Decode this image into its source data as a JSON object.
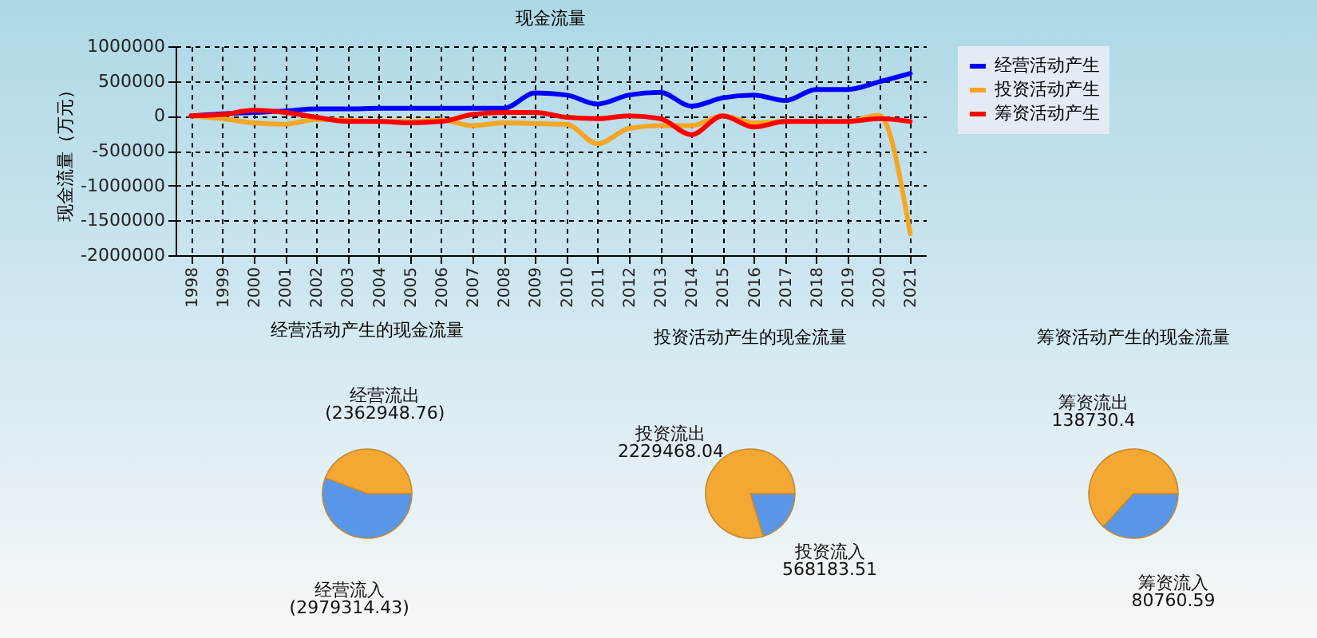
{
  "chart_data": [
    {
      "type": "line",
      "title": "现金流量",
      "ylabel": "现金流量（万元）",
      "categories": [
        "1998",
        "1999",
        "2000",
        "2001",
        "2002",
        "2003",
        "2004",
        "2005",
        "2006",
        "2007",
        "2008",
        "2009",
        "2010",
        "2011",
        "2012",
        "2013",
        "2014",
        "2015",
        "2016",
        "2017",
        "2018",
        "2019",
        "2020",
        "2021"
      ],
      "series": [
        {
          "name": "经营活动产生",
          "color": "#0000ff",
          "values": [
            0,
            30000,
            50000,
            70000,
            100000,
            100000,
            110000,
            110000,
            110000,
            110000,
            110000,
            330000,
            300000,
            170000,
            300000,
            340000,
            140000,
            260000,
            300000,
            220000,
            380000,
            380000,
            490000,
            610000
          ]
        },
        {
          "name": "投资活动产生",
          "color": "#f5a623",
          "values": [
            0,
            -40000,
            -100000,
            -120000,
            -50000,
            -60000,
            -80000,
            -80000,
            -60000,
            -140000,
            -100000,
            -110000,
            -120000,
            -400000,
            -180000,
            -140000,
            -140000,
            0,
            -100000,
            -80000,
            -80000,
            -80000,
            10000,
            -1690000
          ]
        },
        {
          "name": "筹资活动产生",
          "color": "#ff0000",
          "values": [
            0,
            20000,
            80000,
            50000,
            -20000,
            -80000,
            -80000,
            -100000,
            -80000,
            20000,
            50000,
            50000,
            -20000,
            -40000,
            0,
            -40000,
            -270000,
            0,
            -160000,
            -80000,
            -80000,
            -80000,
            -40000,
            -80000
          ]
        }
      ],
      "ylim": [
        -2000000,
        1000000
      ],
      "yticks": [
        -2000000,
        -1500000,
        -1000000,
        -500000,
        0,
        500000,
        1000000
      ],
      "grid": true,
      "line_style": "solid",
      "legend": "top right"
    },
    {
      "type": "pie",
      "title": "经营活动产生的现金流量",
      "categories": [
        "经营流入",
        "经营流出"
      ],
      "values": [
        2979314.43,
        2362948.76
      ],
      "value_labels": [
        "(2979314.43)",
        "(2362948.76)"
      ],
      "colors": [
        "#5a96e8",
        "#f5a733"
      ]
    },
    {
      "type": "pie",
      "title": "投资活动产生的现金流量",
      "categories": [
        "投资流入",
        "投资流出"
      ],
      "values": [
        568183.51,
        2229468.04
      ],
      "value_labels": [
        "568183.51",
        "2229468.04"
      ],
      "colors": [
        "#5a96e8",
        "#f5a733"
      ]
    },
    {
      "type": "pie",
      "title": "筹资活动产生的现金流量",
      "categories": [
        "筹资流入",
        "筹资流出"
      ],
      "values": [
        80760.59,
        138730.4
      ],
      "value_labels": [
        "80760.59",
        "138730.4"
      ],
      "colors": [
        "#5a96e8",
        "#f5a733"
      ]
    }
  ]
}
